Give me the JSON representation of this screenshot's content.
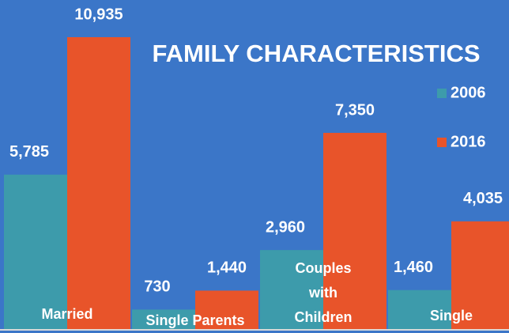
{
  "chart_data": {
    "type": "bar",
    "title": "FAMILY CHARACTERISTICS",
    "categories": [
      "Married",
      "Single Parents",
      "Couples with Children",
      "Single"
    ],
    "series": [
      {
        "name": "2006",
        "color": "#3d9bab",
        "values": [
          5785,
          730,
          2960,
          1460
        ],
        "value_labels": [
          "5,785",
          "730",
          "2,960",
          "1,460"
        ]
      },
      {
        "name": "2016",
        "color": "#e8542a",
        "values": [
          10935,
          1440,
          7350,
          4035
        ],
        "value_labels": [
          "10,935",
          "1,440",
          "7,350",
          "4,035"
        ]
      }
    ],
    "legend": "right"
  }
}
